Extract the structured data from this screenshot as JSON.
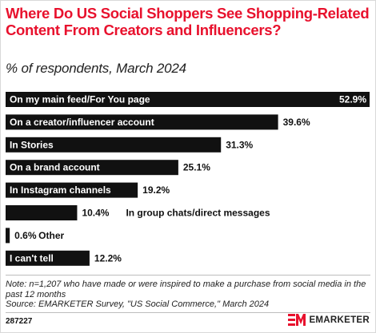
{
  "title": "Where Do US Social Shoppers See Shopping-Related Content From Creators and Influencers?",
  "subtitle": "% of respondents, March 2024",
  "chart_data": {
    "type": "bar",
    "orientation": "horizontal",
    "categories": [
      "On my main feed/For You page",
      "On a creator/influencer account",
      "In Stories",
      "On a brand account",
      "In Instagram channels",
      "In group chats/direct messages",
      "Other",
      "I can't tell"
    ],
    "values": [
      52.9,
      39.6,
      31.3,
      25.1,
      19.2,
      10.4,
      0.6,
      12.2
    ],
    "value_labels": [
      "52.9%",
      "39.6%",
      "31.3%",
      "25.1%",
      "19.2%",
      "10.4%",
      "0.6%",
      "12.2%"
    ],
    "xlim": [
      0,
      52.9
    ],
    "bar_color": "#111111",
    "grid": false,
    "legend": "none"
  },
  "note": "Note: n=1,207 who have made or were inspired to make a purchase from social media in the past 12 months",
  "source": "Source: EMARKETER Survey, \"US Social Commerce,\" March 2024",
  "footer_id": "287227",
  "brand": {
    "logo_mark": "EM",
    "name": "EMARKETER",
    "accent_color": "#e8112d"
  }
}
